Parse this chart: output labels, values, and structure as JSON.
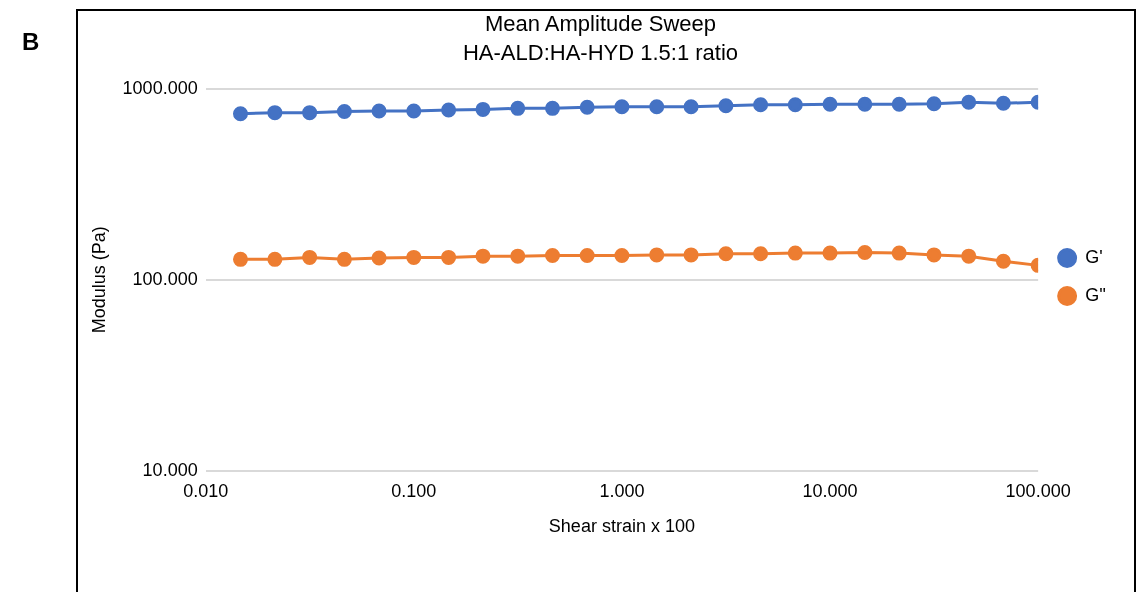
{
  "chart_data": {
    "type": "line",
    "title": "Mean Amplitude Sweep",
    "subtitle": "HA-ALD:HA-HYD 1.5:1 ratio",
    "xlabel": "Shear strain x 100",
    "ylabel": "Modulus (Pa)",
    "annotations": [
      "B"
    ],
    "x": [
      0.0147,
      0.0215,
      0.0316,
      0.0464,
      0.0681,
      0.1,
      0.147,
      0.215,
      0.316,
      0.464,
      0.681,
      1,
      1.47,
      2.15,
      3.16,
      4.64,
      6.81,
      10,
      14.7,
      21.5,
      31.6,
      46.4,
      68.1,
      100
    ],
    "series": [
      {
        "name": "G'",
        "color": "#4472c4",
        "values": [
          740,
          750,
          750,
          760,
          765,
          765,
          775,
          780,
          790,
          790,
          800,
          805,
          805,
          805,
          815,
          825,
          825,
          830,
          830,
          830,
          835,
          850,
          840,
          850
        ]
      },
      {
        "name": "G''",
        "color": "#ed7d31",
        "values": [
          128,
          128,
          131,
          128,
          130,
          131,
          131,
          133,
          133,
          134,
          134,
          134,
          135,
          135,
          137,
          137,
          138,
          138,
          139,
          138,
          135,
          133,
          125,
          119
        ]
      }
    ],
    "log": "xy",
    "xlim": [
      0.01,
      100
    ],
    "xticks": [
      {
        "value": 0.01,
        "label": "0.010"
      },
      {
        "value": 0.1,
        "label": "0.100"
      },
      {
        "value": 1,
        "label": "1.000"
      },
      {
        "value": 10,
        "label": "10.000"
      },
      {
        "value": 100,
        "label": "100.000"
      }
    ],
    "ylim": [
      10,
      1000
    ],
    "yticks": [
      {
        "value": 10,
        "label": "10.000"
      },
      {
        "value": 100,
        "label": "100.000"
      },
      {
        "value": 1000,
        "label": "1000.000"
      }
    ],
    "grid": "y",
    "legend": "right",
    "marker": "circle",
    "line_style": "solid"
  }
}
